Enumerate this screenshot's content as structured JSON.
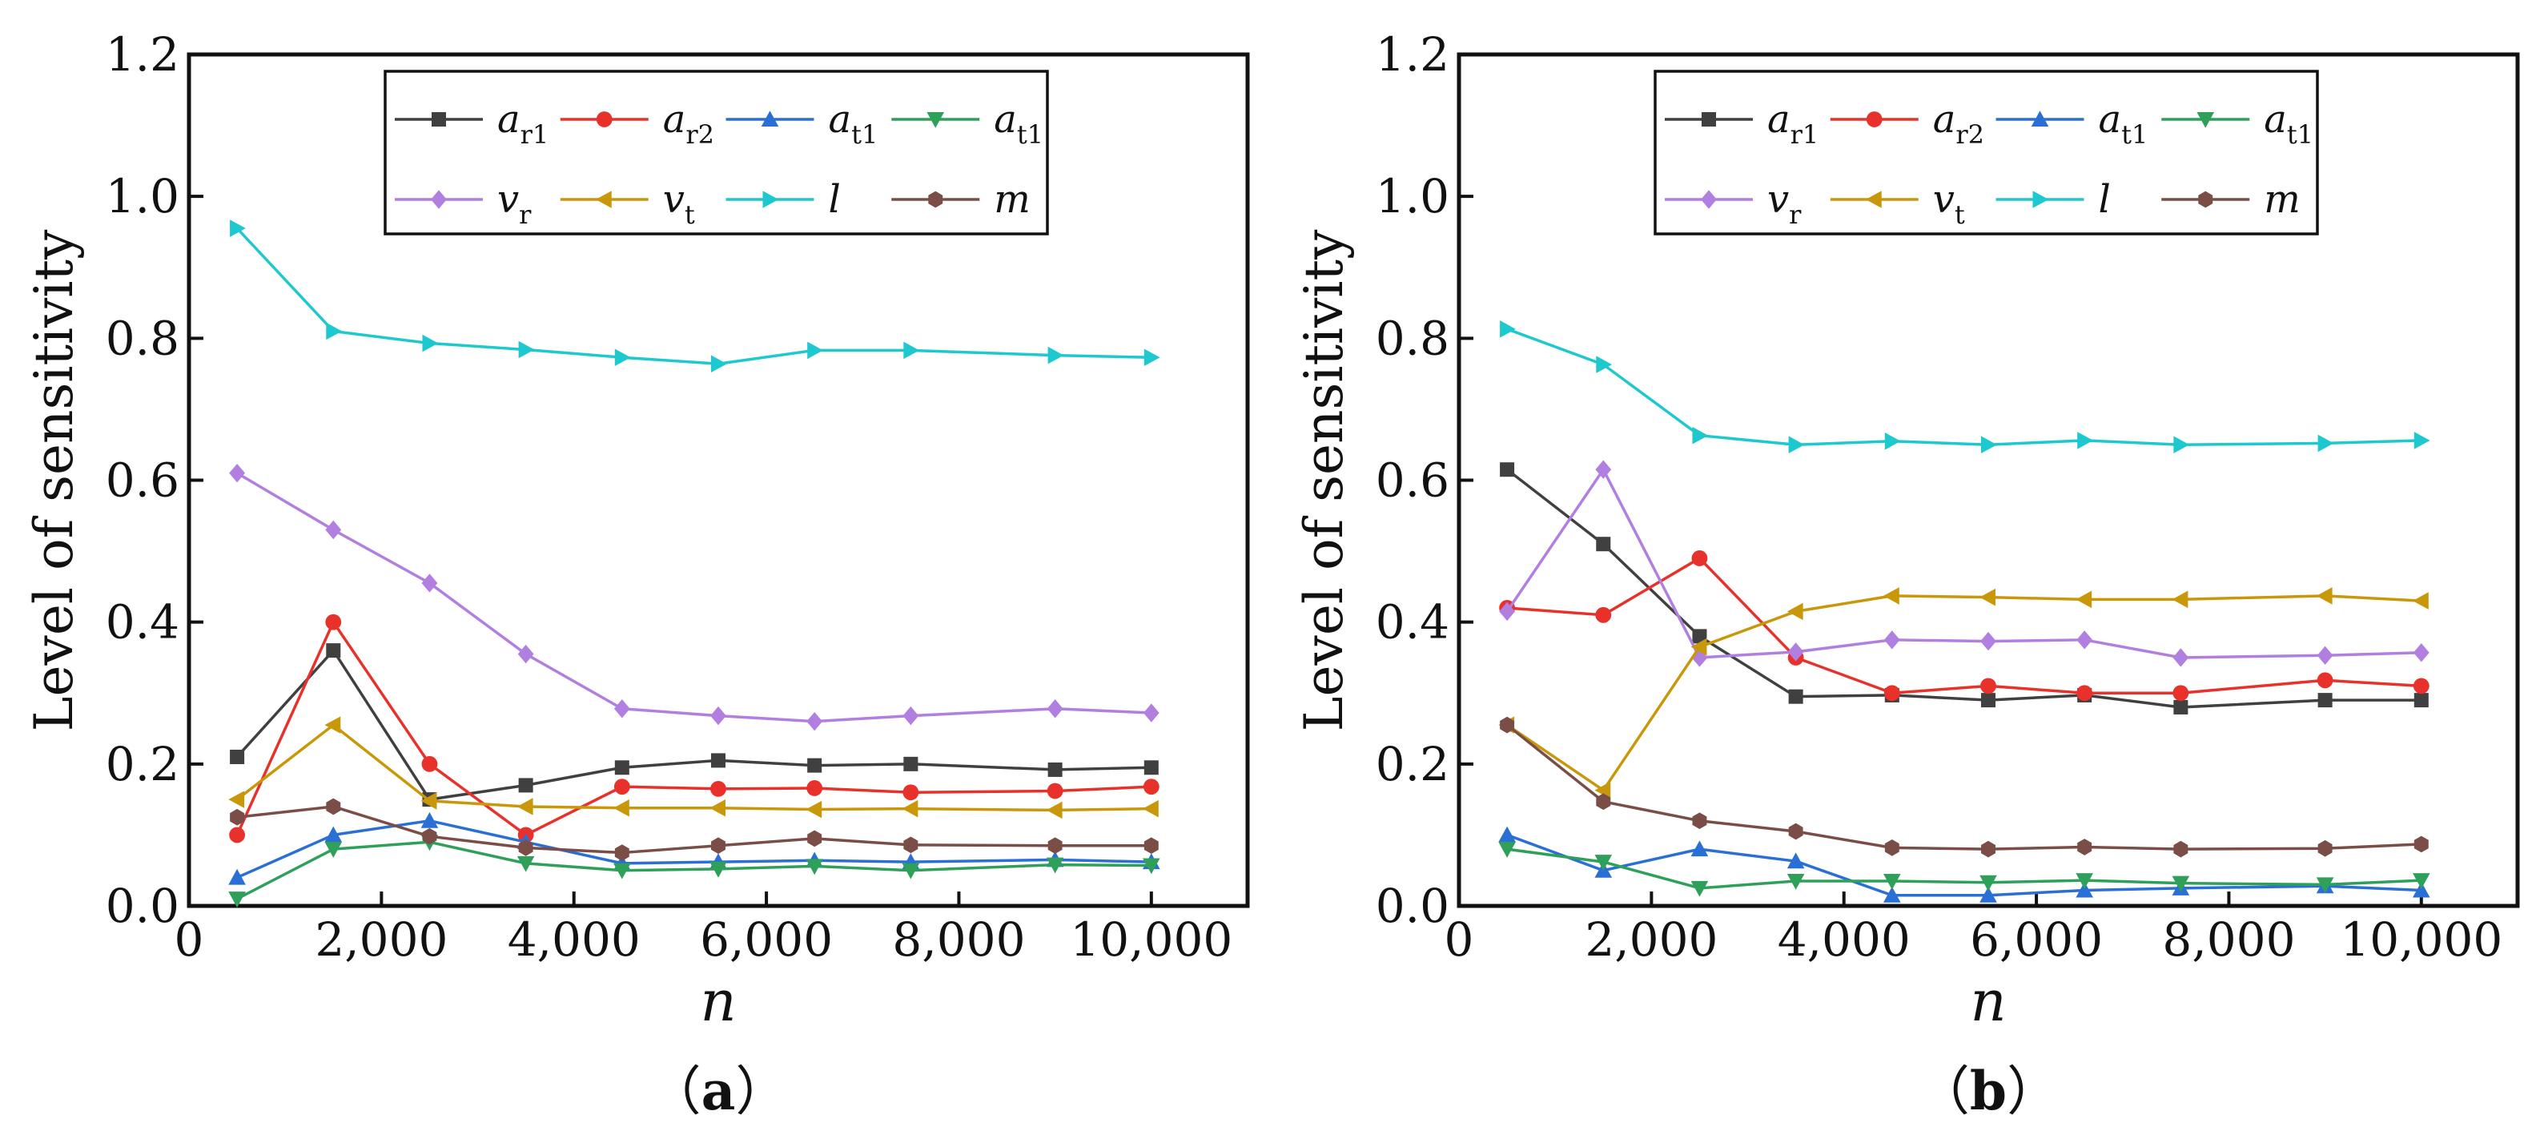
{
  "chart_data": [
    {
      "type": "line",
      "panel_label": "（a）",
      "panel_label_open": "（",
      "panel_label_letter": "a",
      "panel_label_close": "）",
      "xlabel": "n",
      "ylabel": "Level of sensitivity",
      "xlim": [
        0,
        11000
      ],
      "ylim": [
        0,
        1.2
      ],
      "xticks": [
        0,
        2000,
        4000,
        6000,
        8000,
        10000
      ],
      "xtick_labels": [
        "0",
        "2,000",
        "4,000",
        "6,000",
        "8,000",
        "10,000"
      ],
      "yticks": [
        0.0,
        0.2,
        0.4,
        0.6,
        0.8,
        1.0,
        1.2
      ],
      "ytick_labels": [
        "0.0",
        "0.2",
        "0.4",
        "0.6",
        "0.8",
        "1.0",
        "1.2"
      ],
      "grid": false,
      "legend_position": "top",
      "x": [
        500,
        1500,
        2500,
        3500,
        4500,
        5500,
        6500,
        7500,
        9000,
        10000
      ],
      "series": [
        {
          "name": "a",
          "sub": "r1",
          "color": "#404040",
          "marker": "square",
          "values": [
            0.21,
            0.36,
            0.15,
            0.17,
            0.195,
            0.205,
            0.198,
            0.2,
            0.192,
            0.195
          ]
        },
        {
          "name": "a",
          "sub": "r2",
          "color": "#e8312b",
          "marker": "circle",
          "values": [
            0.1,
            0.4,
            0.2,
            0.1,
            0.168,
            0.165,
            0.166,
            0.16,
            0.162,
            0.168
          ]
        },
        {
          "name": "a",
          "sub": "t1",
          "color": "#2a6fd6",
          "marker": "triangle-up",
          "values": [
            0.04,
            0.1,
            0.12,
            0.09,
            0.06,
            0.062,
            0.064,
            0.062,
            0.065,
            0.062
          ]
        },
        {
          "name": "a",
          "sub": "t1",
          "color": "#2ea05a",
          "marker": "triangle-down",
          "values": [
            0.01,
            0.08,
            0.09,
            0.06,
            0.05,
            0.052,
            0.056,
            0.05,
            0.058,
            0.057
          ]
        },
        {
          "name": "v",
          "sub": "r",
          "color": "#b07fe0",
          "marker": "diamond",
          "values": [
            0.61,
            0.53,
            0.455,
            0.355,
            0.278,
            0.268,
            0.26,
            0.268,
            0.278,
            0.272
          ]
        },
        {
          "name": "v",
          "sub": "t",
          "color": "#c9980a",
          "marker": "triangle-left",
          "values": [
            0.15,
            0.255,
            0.148,
            0.14,
            0.138,
            0.138,
            0.136,
            0.137,
            0.135,
            0.137
          ]
        },
        {
          "name": "l",
          "sub": "",
          "color": "#1ec8cf",
          "marker": "triangle-right",
          "values": [
            0.955,
            0.81,
            0.793,
            0.784,
            0.773,
            0.764,
            0.783,
            0.783,
            0.776,
            0.773
          ]
        },
        {
          "name": "m",
          "sub": "",
          "color": "#7a4d47",
          "marker": "hexagon",
          "values": [
            0.125,
            0.14,
            0.098,
            0.082,
            0.075,
            0.085,
            0.095,
            0.086,
            0.085,
            0.085
          ]
        }
      ]
    },
    {
      "type": "line",
      "panel_label": "（b）",
      "panel_label_open": "（",
      "panel_label_letter": "b",
      "panel_label_close": "）",
      "xlabel": "n",
      "ylabel": "Level of sensitivity",
      "xlim": [
        0,
        11000
      ],
      "ylim": [
        0,
        1.2
      ],
      "xticks": [
        0,
        2000,
        4000,
        6000,
        8000,
        10000
      ],
      "xtick_labels": [
        "0",
        "2,000",
        "4,000",
        "6,000",
        "8,000",
        "10,000"
      ],
      "yticks": [
        0.0,
        0.2,
        0.4,
        0.6,
        0.8,
        1.0,
        1.2
      ],
      "ytick_labels": [
        "0.0",
        "0.2",
        "0.4",
        "0.6",
        "0.8",
        "1.0",
        "1.2"
      ],
      "grid": false,
      "legend_position": "top",
      "x": [
        500,
        1500,
        2500,
        3500,
        4500,
        5500,
        6500,
        7500,
        9000,
        10000
      ],
      "series": [
        {
          "name": "a",
          "sub": "r1",
          "color": "#404040",
          "marker": "square",
          "values": [
            0.615,
            0.51,
            0.38,
            0.295,
            0.297,
            0.29,
            0.297,
            0.28,
            0.29,
            0.29
          ]
        },
        {
          "name": "a",
          "sub": "r2",
          "color": "#e8312b",
          "marker": "circle",
          "values": [
            0.42,
            0.41,
            0.49,
            0.35,
            0.3,
            0.31,
            0.3,
            0.3,
            0.318,
            0.31
          ]
        },
        {
          "name": "a",
          "sub": "t1",
          "color": "#2a6fd6",
          "marker": "triangle-up",
          "values": [
            0.1,
            0.05,
            0.08,
            0.063,
            0.015,
            0.015,
            0.022,
            0.025,
            0.028,
            0.022
          ]
        },
        {
          "name": "a",
          "sub": "t1",
          "color": "#2ea05a",
          "marker": "triangle-down",
          "values": [
            0.08,
            0.062,
            0.025,
            0.035,
            0.035,
            0.033,
            0.036,
            0.032,
            0.03,
            0.036
          ]
        },
        {
          "name": "v",
          "sub": "r",
          "color": "#b07fe0",
          "marker": "diamond",
          "values": [
            0.415,
            0.615,
            0.35,
            0.358,
            0.375,
            0.373,
            0.375,
            0.35,
            0.353,
            0.357
          ]
        },
        {
          "name": "v",
          "sub": "t",
          "color": "#c9980a",
          "marker": "triangle-left",
          "values": [
            0.255,
            0.163,
            0.365,
            0.415,
            0.437,
            0.435,
            0.432,
            0.432,
            0.437,
            0.43
          ]
        },
        {
          "name": "l",
          "sub": "",
          "color": "#1ec8cf",
          "marker": "triangle-right",
          "values": [
            0.813,
            0.763,
            0.663,
            0.65,
            0.655,
            0.65,
            0.656,
            0.65,
            0.652,
            0.656
          ]
        },
        {
          "name": "m",
          "sub": "",
          "color": "#7a4d47",
          "marker": "hexagon",
          "values": [
            0.255,
            0.147,
            0.12,
            0.105,
            0.082,
            0.08,
            0.083,
            0.08,
            0.081,
            0.087
          ]
        }
      ]
    }
  ]
}
